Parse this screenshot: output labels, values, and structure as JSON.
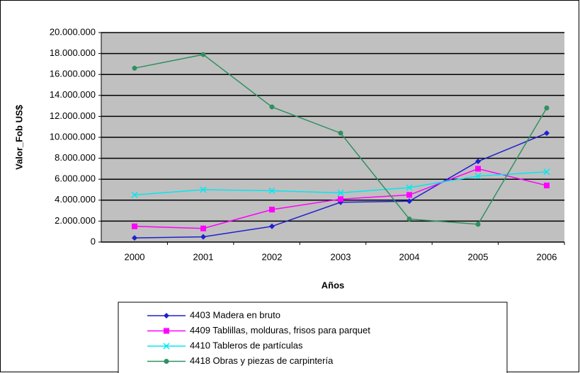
{
  "chart_data": {
    "type": "line",
    "y_axis_label": "Valor_Fob US$",
    "x_axis_label": "Años",
    "categories": [
      "2000",
      "2001",
      "2002",
      "2003",
      "2004",
      "2005",
      "2006"
    ],
    "series": [
      {
        "name": "4403 Madera en bruto",
        "color": "#1f1fd0",
        "marker": "diamond",
        "values": [
          400000,
          500000,
          1500000,
          3800000,
          3900000,
          7700000,
          10400000
        ]
      },
      {
        "name": "4409 Tablillas, molduras, frisos para parquet",
        "color": "#ff00ff",
        "marker": "square",
        "values": [
          1500000,
          1300000,
          3100000,
          4100000,
          4500000,
          7000000,
          5400000
        ]
      },
      {
        "name": "4410 Tableros de partículas",
        "color": "#00e8f0",
        "marker": "x",
        "values": [
          4500000,
          5000000,
          4900000,
          4700000,
          5200000,
          6300000,
          6700000
        ]
      },
      {
        "name": "4418 Obras y piezas de carpintería",
        "color": "#2f9060",
        "marker": "circle",
        "values": [
          16600000,
          17900000,
          12900000,
          10400000,
          2200000,
          1700000,
          12800000
        ]
      }
    ],
    "ylim": [
      0,
      20000000
    ],
    "yticks": [
      0,
      {
        "value": 2000000,
        "label": "2.000.000"
      },
      {
        "value": 4000000,
        "label": "4.000.000"
      },
      {
        "value": 6000000,
        "label": "6.000.000"
      },
      {
        "value": 8000000,
        "label": "8.000.000"
      },
      {
        "value": 10000000,
        "label": "10.000.000"
      },
      {
        "value": 12000000,
        "label": "12.000.000"
      },
      {
        "value": 14000000,
        "label": "14.000.000"
      },
      {
        "value": 16000000,
        "label": "16.000.000"
      },
      {
        "value": 18000000,
        "label": "18.000.000"
      },
      {
        "value": 20000000,
        "label": "20.000.000"
      }
    ],
    "grid": true,
    "legend": "bottom"
  }
}
